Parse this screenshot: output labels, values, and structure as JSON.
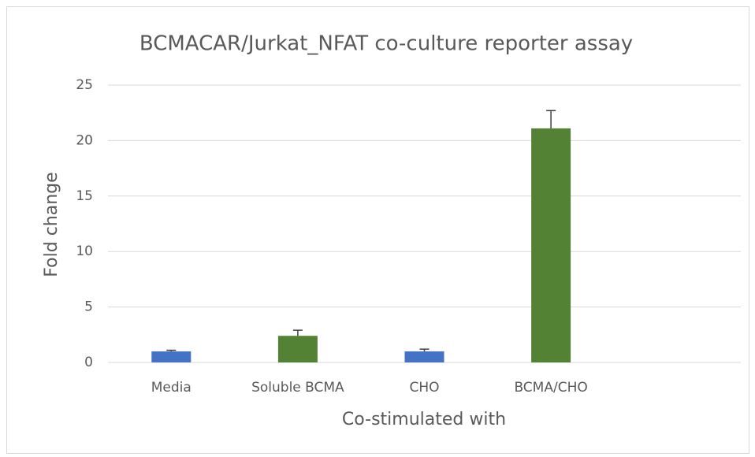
{
  "chart_data": {
    "type": "bar",
    "title": "BCMACAR/Jurkat_NFAT co-culture reporter assay",
    "x_label": "Co-stimulated with",
    "y_label": "Fold change",
    "categories": [
      "Media",
      "Soluble BCMA",
      "CHO",
      "BCMA/CHO",
      null
    ],
    "values": [
      1.0,
      2.4,
      1.0,
      21.1,
      null
    ],
    "errors": [
      0.1,
      0.5,
      0.2,
      1.6,
      null
    ],
    "colors": [
      "#4472c4",
      "#548235",
      "#4472c4",
      "#548235",
      null
    ],
    "error_color": "#404040",
    "ylim": [
      0,
      25
    ],
    "yticks": [
      0,
      5,
      10,
      15,
      20,
      25
    ],
    "grid": true
  }
}
